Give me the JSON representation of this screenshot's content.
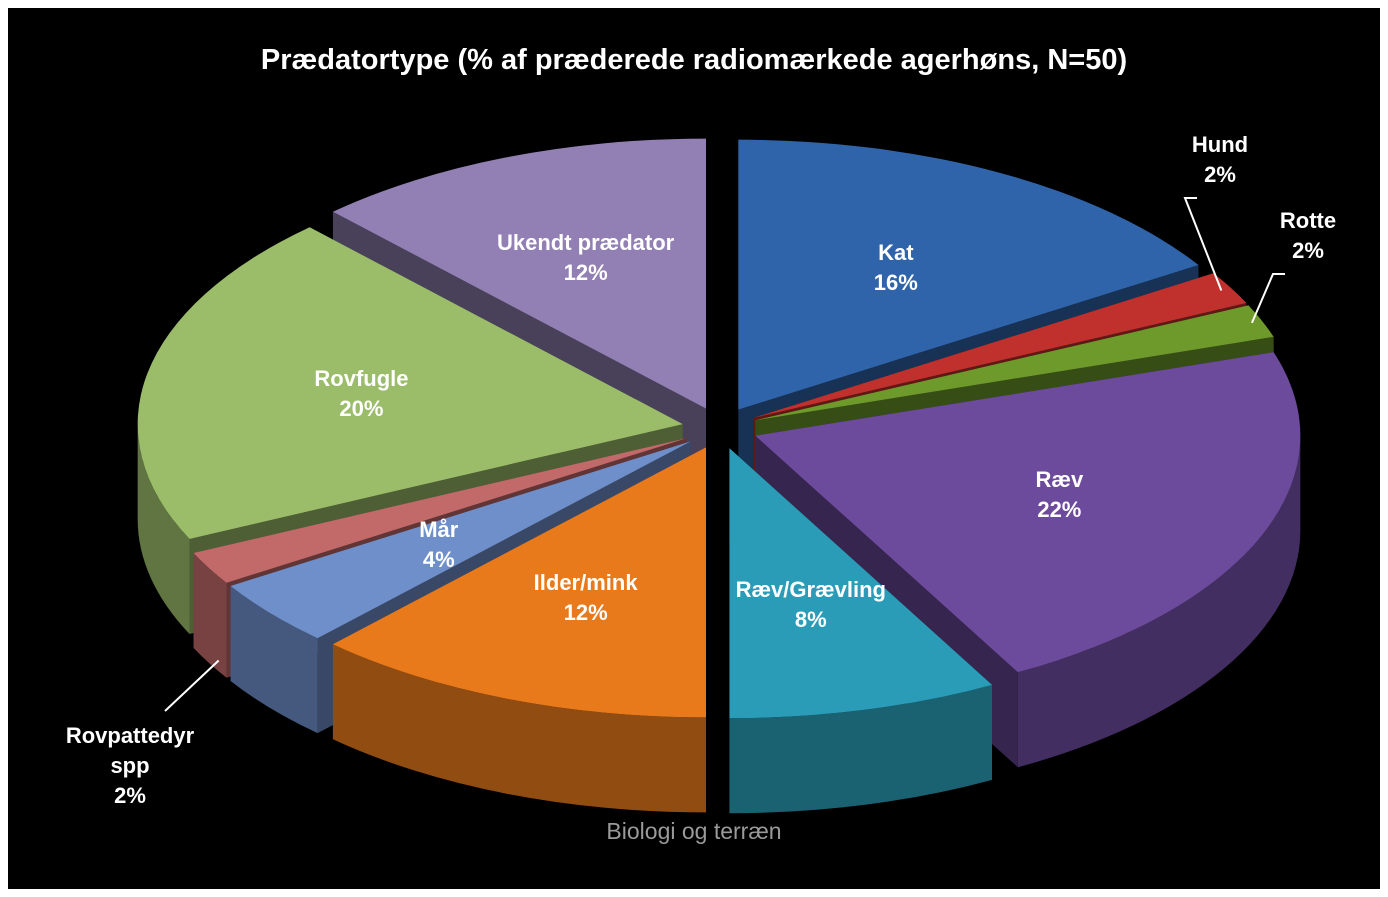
{
  "chart_data": {
    "type": "pie3d",
    "title": "Prædatortype  (% af præderede radiomærkede agerhøns, N=50)",
    "categories": [
      "Kat",
      "Hund",
      "Rotte",
      "Ræv",
      "Ræv/Grævling",
      "Ilder/mink",
      "Mår",
      "Rovpattedyr spp",
      "Rovfugle",
      "Ukendt prædator"
    ],
    "values": [
      16,
      2,
      2,
      22,
      8,
      12,
      4,
      2,
      20,
      12
    ],
    "value_labels": [
      "16%",
      "2%",
      "2%",
      "22%",
      "8%",
      "12%",
      "4%",
      "2%",
      "20%",
      "12%"
    ],
    "colors": [
      "#2f64aa",
      "#c0302c",
      "#6e9a2c",
      "#6c4a9c",
      "#2a9cb8",
      "#e97a1c",
      "#6f8fcb",
      "#c26a6a",
      "#9bbd6a",
      "#9280b4"
    ],
    "caption": "Biologi og terræn"
  }
}
